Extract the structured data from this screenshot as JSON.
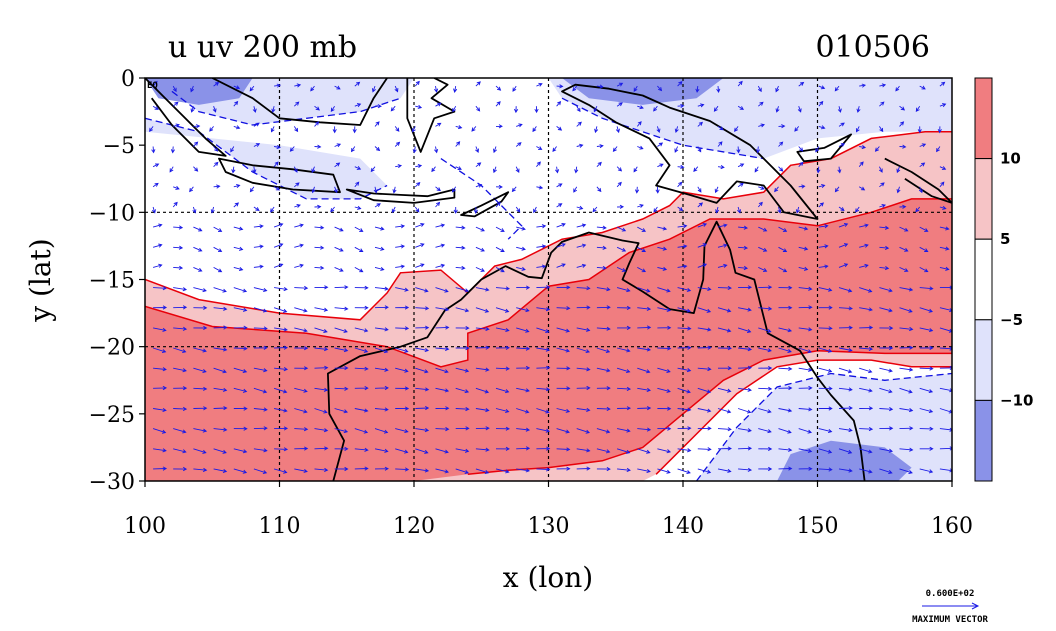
{
  "header": {
    "title": "u uv 200 mb",
    "date": "010506"
  },
  "colors": {
    "strong_negative": "#8a92e8",
    "weak_negative": "#dfe2fb",
    "neutral": "#ffffff",
    "weak_positive": "#f6c4c6",
    "strong_positive": "#f07d80",
    "contour_positive": "#e8000a",
    "contour_negative": "#1010e0",
    "vector": "#1a1ae6",
    "coast": "#000000"
  },
  "chart_data": {
    "type": "heatmap",
    "variable": "u",
    "level": "200 mb",
    "xlabel": "x (lon)",
    "ylabel": "y (lat)",
    "xlim": [
      100,
      160
    ],
    "ylim": [
      -30,
      0
    ],
    "xticks": [
      100,
      110,
      120,
      130,
      140,
      150,
      160
    ],
    "yticks": [
      0,
      -5,
      -10,
      -15,
      -20,
      -25,
      -30
    ],
    "ytick_labels": [
      "0",
      "−5",
      "−10",
      "−15",
      "−20",
      "−25",
      "−30"
    ],
    "corner_label": "EQ",
    "grid": true,
    "gridlines_x": [
      110,
      120,
      130,
      140,
      150
    ],
    "gridlines_y": [
      -10,
      -20
    ],
    "colorbar": {
      "placement": "right",
      "levels": [
        "10",
        "5",
        "−5",
        "−10"
      ],
      "bins": [
        {
          "range": "> 10",
          "color": "#f07d80"
        },
        {
          "range": "5 to 10",
          "color": "#f6c4c6"
        },
        {
          "range": "−5 to 5",
          "color": "#ffffff"
        },
        {
          "range": "−10 to −5",
          "color": "#dfe2fb"
        },
        {
          "range": "< −10",
          "color": "#8a92e8"
        }
      ]
    },
    "vector_reference": {
      "value": "0.600E+02",
      "label": "MAXIMUM VECTOR"
    }
  }
}
